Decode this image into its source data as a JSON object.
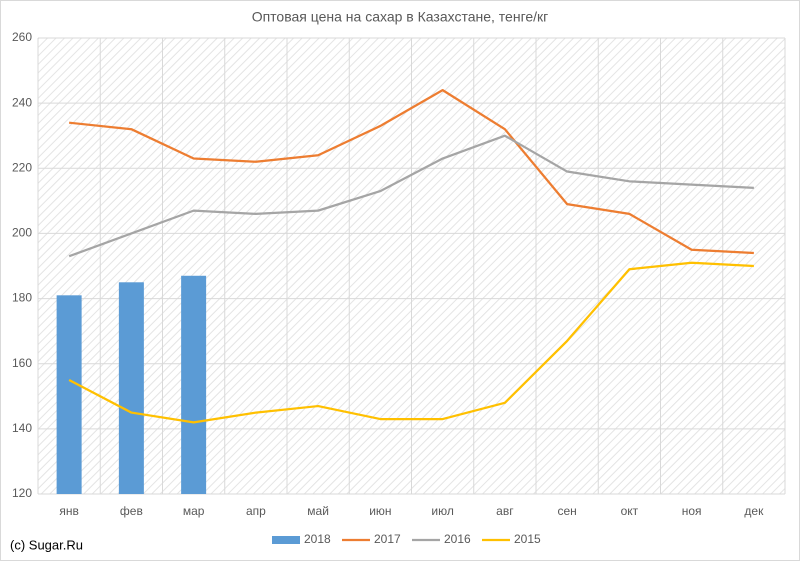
{
  "chart_data": {
    "type": "combo",
    "title": "Оптовая цена на сахар в Казахстане, тенге/кг",
    "categories": [
      "янв",
      "фев",
      "мар",
      "апр",
      "май",
      "июн",
      "июл",
      "авг",
      "сен",
      "окт",
      "ноя",
      "дек"
    ],
    "series": [
      {
        "name": "2018",
        "type": "bar",
        "color": "#5b9bd5",
        "values": [
          181,
          185,
          187,
          null,
          null,
          null,
          null,
          null,
          null,
          null,
          null,
          null
        ]
      },
      {
        "name": "2017",
        "type": "line",
        "color": "#ed7d31",
        "values": [
          234,
          232,
          223,
          222,
          224,
          233,
          244,
          232,
          209,
          206,
          195,
          194
        ]
      },
      {
        "name": "2016",
        "type": "line",
        "color": "#a5a5a5",
        "values": [
          193,
          200,
          207,
          206,
          207,
          213,
          223,
          230,
          219,
          216,
          215,
          214
        ]
      },
      {
        "name": "2015",
        "type": "line",
        "color": "#ffc000",
        "values": [
          155,
          145,
          142,
          145,
          147,
          143,
          143,
          148,
          167,
          189,
          191,
          190
        ]
      }
    ],
    "ylim": [
      120,
      260
    ],
    "yticks": [
      120,
      140,
      160,
      180,
      200,
      220,
      240,
      260
    ],
    "grid": true,
    "legend": "bottom",
    "source": "(c) Sugar.Ru"
  }
}
